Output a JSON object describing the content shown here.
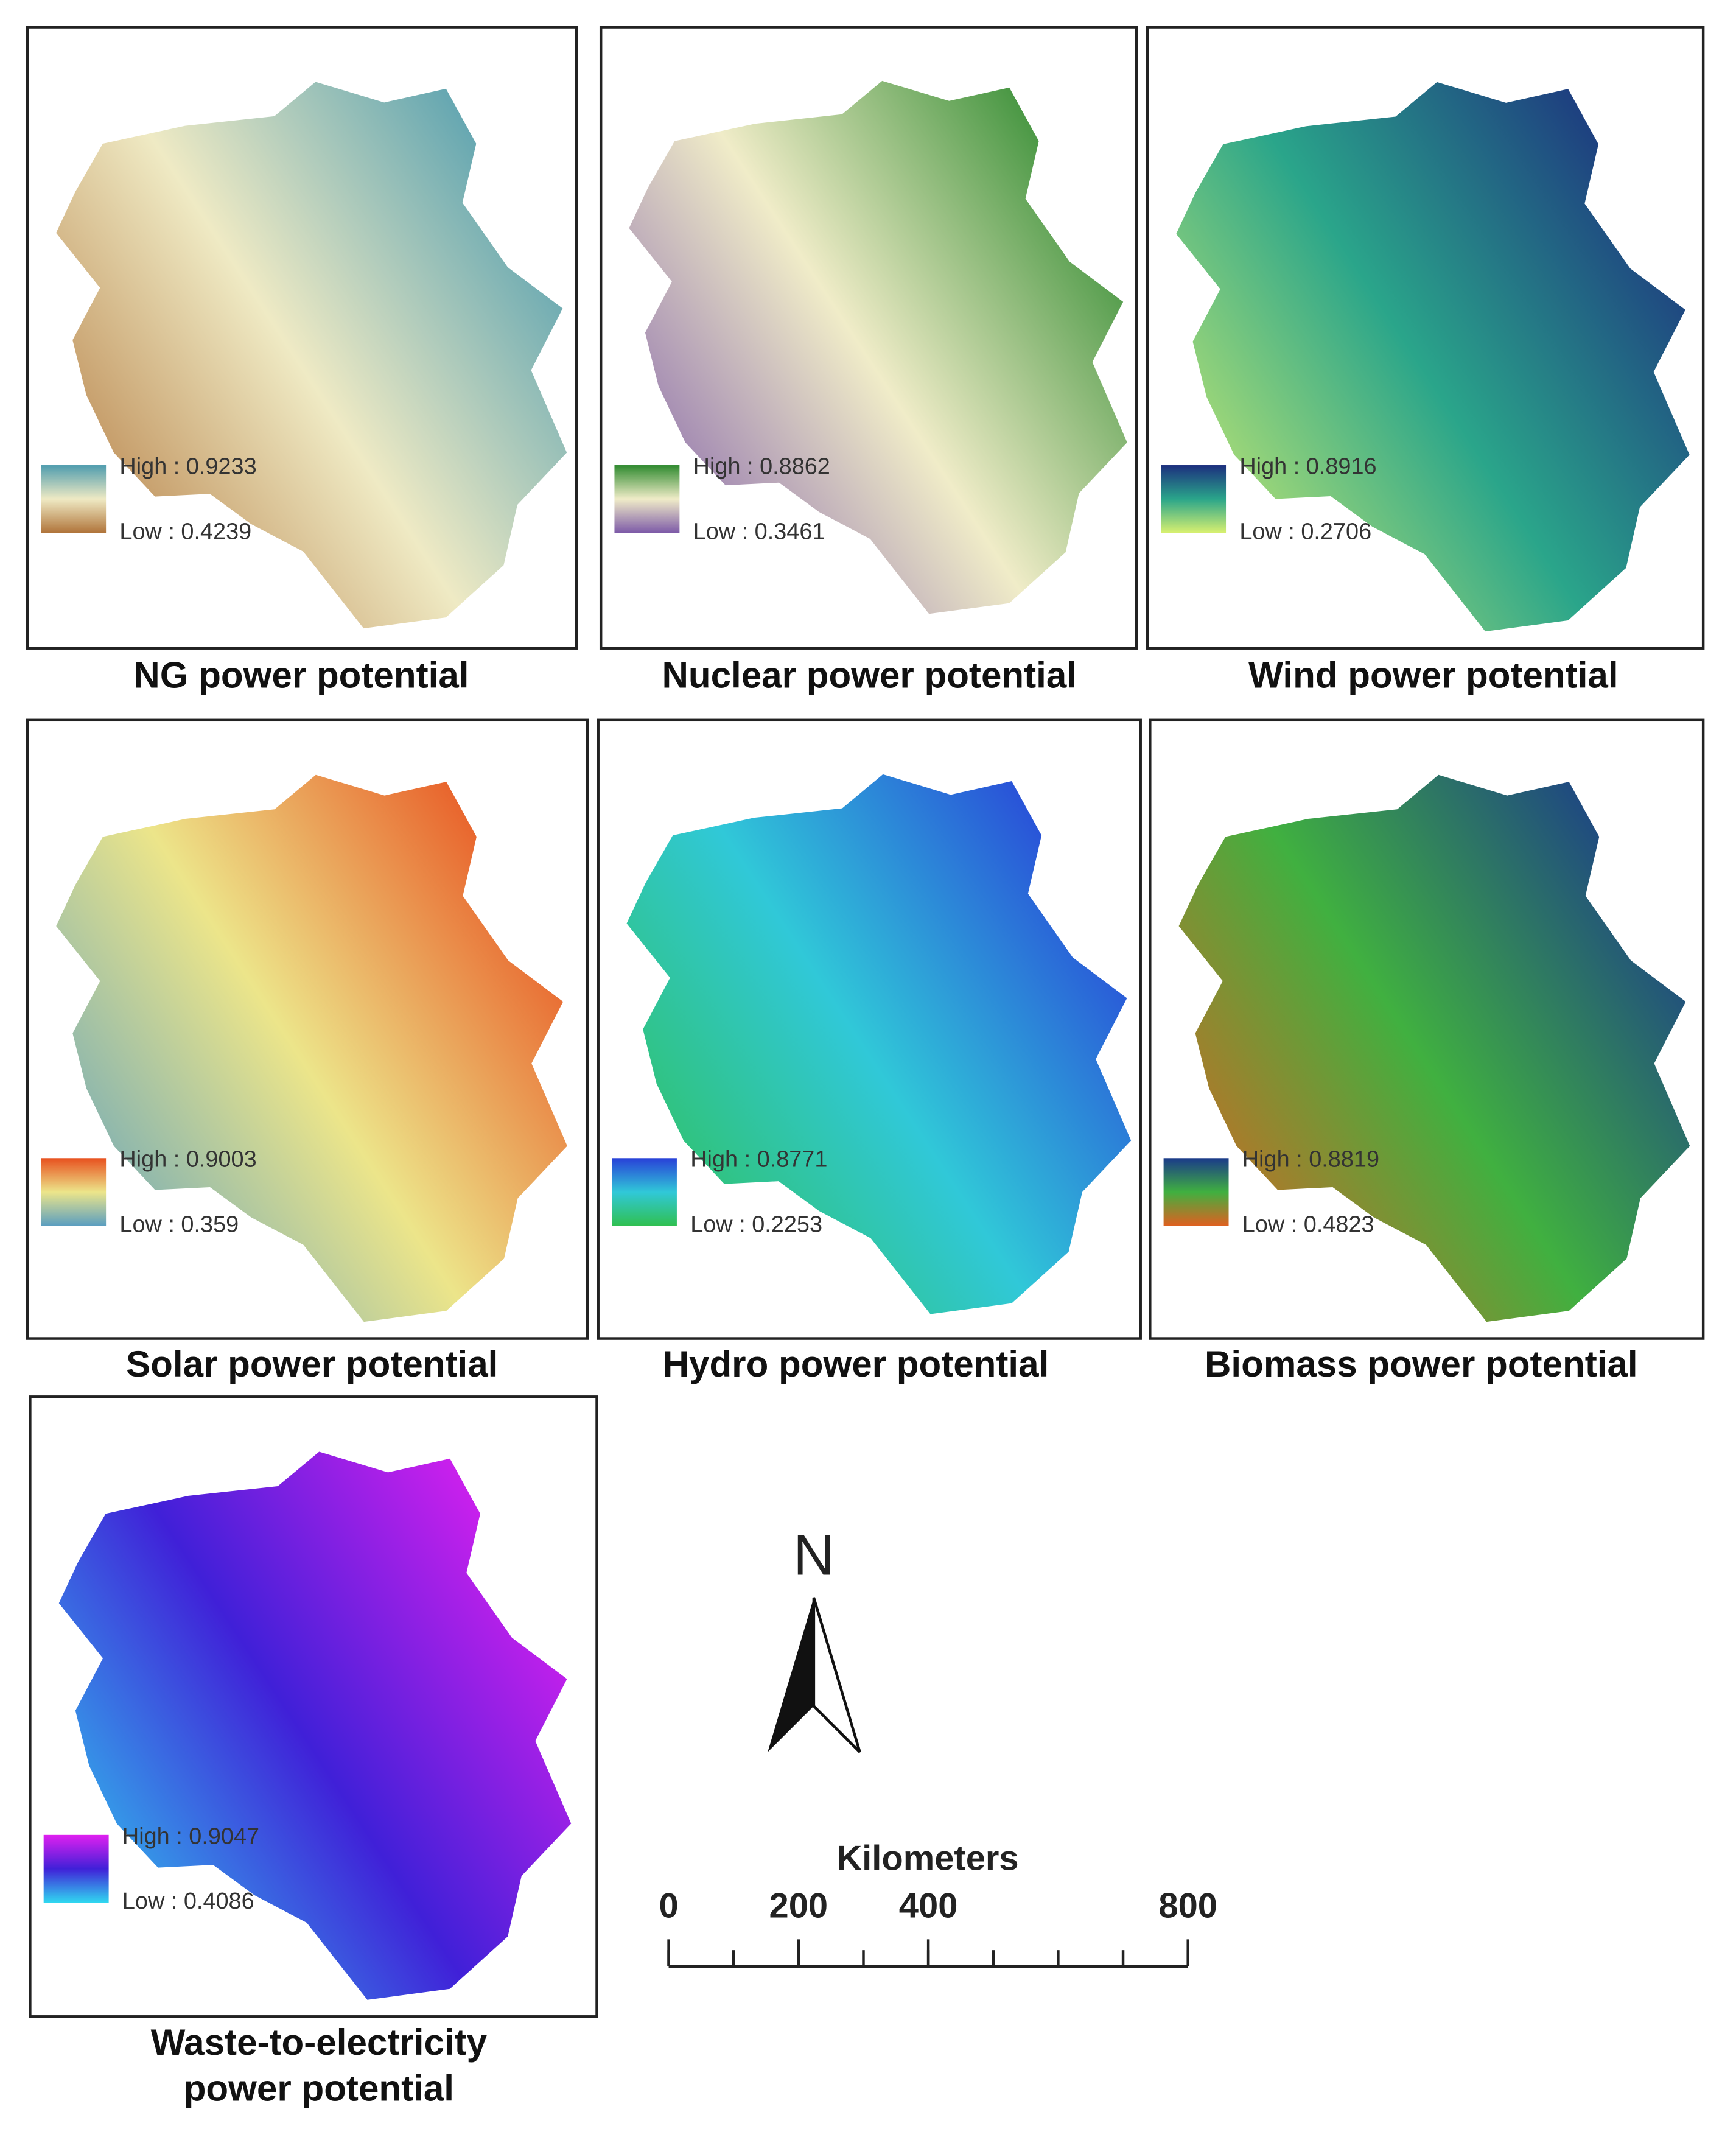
{
  "panels": [
    {
      "title": [
        "NG power potential"
      ],
      "high": "High : 0.9233",
      "low": "Low : 0.4239",
      "colors": [
        "#4f9cae",
        "#efeac4",
        "#b0743a"
      ]
    },
    {
      "title": [
        "Nuclear power potential"
      ],
      "high": "High : 0.8862",
      "low": "Low : 0.3461",
      "colors": [
        "#2f8a2f",
        "#f0ecc8",
        "#7d5aa8"
      ]
    },
    {
      "title": [
        "Wind power potential"
      ],
      "high": "High : 0.8916",
      "low": "Low : 0.2706",
      "colors": [
        "#1c2f7e",
        "#2aa58a",
        "#d8f070"
      ]
    },
    {
      "title": [
        "Solar power potential"
      ],
      "high": "High : 0.9003",
      "low": "Low : 0.359",
      "colors": [
        "#e8501e",
        "#ece58a",
        "#5a9ec0"
      ]
    },
    {
      "title": [
        "Hydro power potential"
      ],
      "high": "High : 0.8771",
      "low": "Low : 0.2253",
      "colors": [
        "#2840d8",
        "#30c8d8",
        "#30c050"
      ]
    },
    {
      "title": [
        "Biomass power potential"
      ],
      "high": "High : 0.8819",
      "low": "Low : 0.4823",
      "colors": [
        "#1a3a8a",
        "#40b040",
        "#e06020"
      ]
    },
    {
      "title": [
        "Waste-to-electricity",
        "power potential"
      ],
      "high": "High : 0.9047",
      "low": "Low : 0.4086",
      "colors": [
        "#e020f0",
        "#4020d8",
        "#30d8f0"
      ]
    }
  ],
  "north": "N",
  "scale_bar": {
    "title": "Kilometers",
    "ticks": [
      0,
      200,
      400,
      800
    ]
  }
}
